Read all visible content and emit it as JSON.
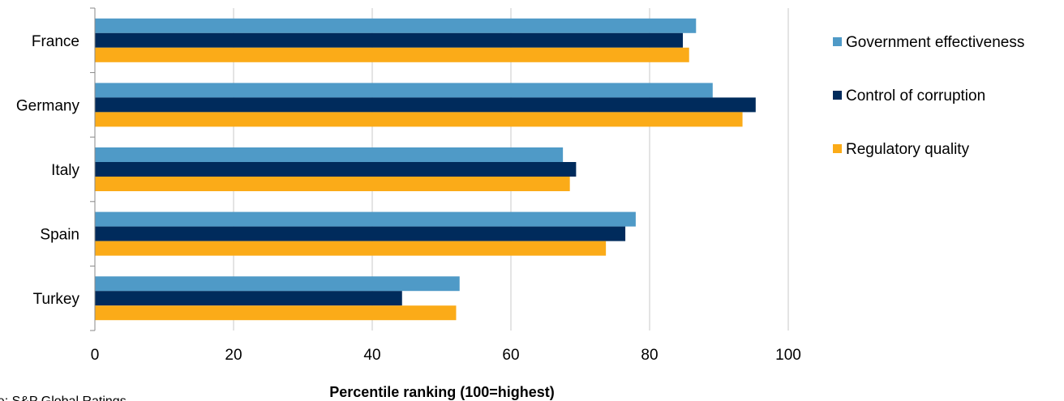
{
  "chart_data": {
    "type": "bar",
    "orientation": "horizontal",
    "categories": [
      "France",
      "Germany",
      "Italy",
      "Spain",
      "Turkey"
    ],
    "series": [
      {
        "name": "Government effectiveness",
        "color": "#4f9ac7",
        "values": [
          86.7,
          89.1,
          67.5,
          78.0,
          52.6
        ]
      },
      {
        "name": "Control of corruption",
        "color": "#002b5c",
        "values": [
          84.8,
          95.3,
          69.4,
          76.5,
          44.3
        ]
      },
      {
        "name": "Regulatory quality",
        "color": "#fbab18",
        "values": [
          85.7,
          93.4,
          68.5,
          73.7,
          52.1
        ]
      }
    ],
    "xlim": [
      0,
      100
    ],
    "xticks": [
      0,
      20,
      40,
      60,
      80,
      100
    ],
    "xlabel": "Percentile ranking (100=highest)",
    "ylabel": "",
    "title": "",
    "grid": "vertical",
    "legend_position": "right"
  },
  "source": "Source: S&P Global Ratings"
}
